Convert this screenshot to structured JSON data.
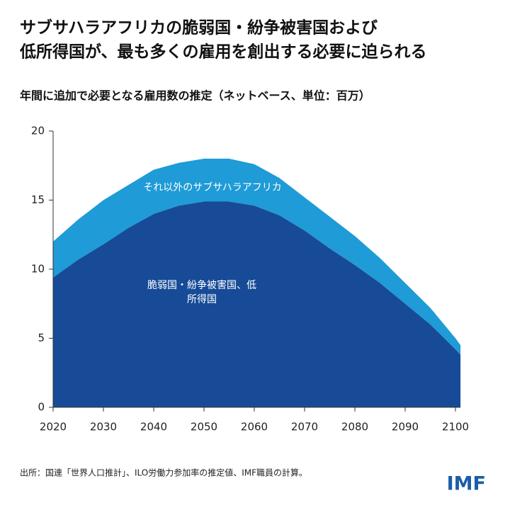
{
  "chart_data": {
    "type": "stacked_area",
    "title": [
      "サブサハラアフリカの脆弱国・紛争被害国および",
      "低所得国が、最も多くの雇用を創出する必要に迫られる"
    ],
    "subtitle": "年間に追加で必要となる雇用数の推定（ネットベース、単位：百万）",
    "x": [
      2020,
      2025,
      2030,
      2035,
      2040,
      2045,
      2050,
      2055,
      2060,
      2065,
      2070,
      2075,
      2080,
      2085,
      2090,
      2095,
      2100,
      2101
    ],
    "series": [
      {
        "name": "脆弱国・紛争被害国、低所得国",
        "color": "#174b97",
        "values": [
          9.4,
          10.7,
          11.8,
          13.0,
          14.0,
          14.6,
          14.9,
          14.9,
          14.6,
          13.9,
          12.8,
          11.5,
          10.3,
          9.0,
          7.5,
          6.0,
          4.2,
          3.8
        ]
      },
      {
        "name": "それ以外のサブサハラアフリカ",
        "color": "#1f9bd7",
        "values": [
          2.6,
          2.9,
          3.2,
          3.1,
          3.2,
          3.1,
          3.1,
          3.1,
          3.0,
          2.7,
          2.4,
          2.3,
          2.1,
          1.8,
          1.5,
          1.2,
          0.8,
          0.7
        ]
      }
    ],
    "xlim": [
      2020,
      2101
    ],
    "xticks": [
      2020,
      2030,
      2040,
      2050,
      2060,
      2070,
      2080,
      2090,
      2100
    ],
    "ylim": [
      0,
      20
    ],
    "yticks": [
      0,
      5,
      10,
      15,
      20
    ],
    "grid": false,
    "source": "出所：国連「世界人口推計」、ILO労働力参加率の推定値、IMF職員の計算。",
    "logo": "IMF"
  }
}
